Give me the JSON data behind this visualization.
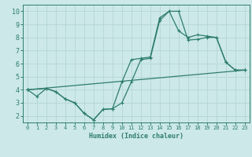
{
  "xlabel": "Humidex (Indice chaleur)",
  "xlim": [
    -0.5,
    23.5
  ],
  "ylim": [
    1.5,
    10.5
  ],
  "yticks": [
    2,
    3,
    4,
    5,
    6,
    7,
    8,
    9,
    10
  ],
  "xticks": [
    0,
    1,
    2,
    3,
    4,
    5,
    6,
    7,
    8,
    9,
    10,
    11,
    12,
    13,
    14,
    15,
    16,
    17,
    18,
    19,
    20,
    21,
    22,
    23
  ],
  "background_color": "#cce8e8",
  "grid_color": "#b8d8d8",
  "line_color": "#2e7d6e",
  "line1_x": [
    0,
    1,
    2,
    3,
    4,
    5,
    6,
    7,
    8,
    9,
    10,
    11,
    12,
    13,
    14,
    15,
    16,
    17,
    18,
    19,
    20,
    21,
    22,
    23
  ],
  "line1_y": [
    4.0,
    3.5,
    4.1,
    3.85,
    3.3,
    3.0,
    2.2,
    1.7,
    2.5,
    2.55,
    3.0,
    4.6,
    6.3,
    6.4,
    9.3,
    10.0,
    8.5,
    8.0,
    8.2,
    8.1,
    8.0,
    6.1,
    5.5,
    5.5
  ],
  "line2_x": [
    0,
    2,
    3,
    4,
    5,
    6,
    7,
    8,
    9,
    10,
    11,
    12,
    13,
    14,
    15,
    16,
    17,
    18,
    19,
    20,
    21,
    22,
    23
  ],
  "line2_y": [
    4.0,
    4.1,
    3.85,
    3.3,
    3.0,
    2.2,
    1.7,
    2.5,
    2.55,
    4.6,
    6.3,
    6.4,
    6.5,
    9.5,
    10.0,
    10.0,
    7.8,
    7.85,
    8.0,
    8.0,
    6.1,
    5.5,
    5.5
  ],
  "line3_x": [
    0,
    23
  ],
  "line3_y": [
    4.0,
    5.5
  ]
}
